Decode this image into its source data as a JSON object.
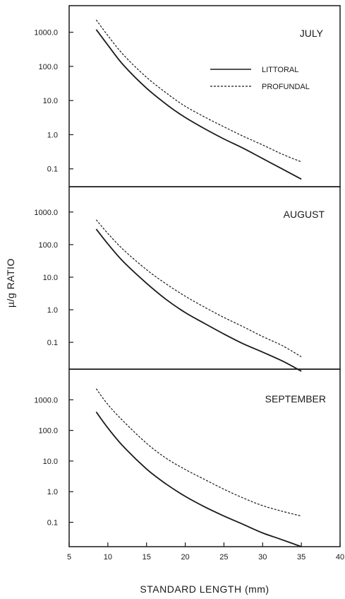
{
  "chart_data": {
    "type": "line",
    "xlabel": "STANDARD LENGTH (mm)",
    "ylabel": "µ/g RATIO",
    "x_scale": "linear",
    "y_scale": "log",
    "xlim": [
      5,
      40
    ],
    "x_ticks": [
      "5",
      "10",
      "15",
      "20",
      "25",
      "30",
      "35",
      "40"
    ],
    "legend": {
      "placement": "top-right of first panel",
      "entries": [
        {
          "label": "LITTORAL",
          "style": "solid"
        },
        {
          "label": "PROFUNDAL",
          "style": "dashed"
        }
      ]
    },
    "panels": [
      {
        "title": "JULY",
        "ylim": [
          0.03,
          6000
        ],
        "y_ticks": [
          "1000.0",
          "100.0",
          "10.0",
          "1.0",
          "0.1"
        ],
        "series": [
          {
            "name": "LITTORAL",
            "style": "solid",
            "x": [
              8.5,
              10,
              12,
              15,
              18,
              20,
              22.5,
              25,
              27.5,
              30,
              32.5,
              35
            ],
            "y": [
              1200,
              420,
              110,
              23,
              6.5,
              3.2,
              1.5,
              0.75,
              0.4,
              0.2,
              0.1,
              0.05
            ]
          },
          {
            "name": "PROFUNDAL",
            "style": "dashed",
            "x": [
              8.5,
              10,
              12,
              15,
              18,
              20,
              22.5,
              25,
              27.5,
              30,
              32.5,
              35
            ],
            "y": [
              2300,
              800,
              220,
              48,
              14,
              6.8,
              3.3,
              1.7,
              0.9,
              0.5,
              0.27,
              0.16
            ]
          }
        ]
      },
      {
        "title": "AUGUST",
        "ylim": [
          0.015,
          6000
        ],
        "y_ticks": [
          "1000.0",
          "100.0",
          "10.0",
          "1.0",
          "0.1"
        ],
        "series": [
          {
            "name": "LITTORAL",
            "style": "solid",
            "x": [
              8.5,
              10,
              12,
              15,
              17.5,
              20,
              22.5,
              25,
              27.5,
              30,
              32.5,
              35
            ],
            "y": [
              300,
              105,
              30,
              6.5,
              2.1,
              0.82,
              0.38,
              0.18,
              0.09,
              0.05,
              0.027,
              0.013
            ]
          },
          {
            "name": "PROFUNDAL",
            "style": "dashed",
            "x": [
              8.5,
              10,
              12,
              15,
              17.5,
              20,
              22.5,
              25,
              27.5,
              30,
              32.5,
              35
            ],
            "y": [
              580,
              220,
              70,
              17,
              6.3,
              2.6,
              1.2,
              0.58,
              0.3,
              0.15,
              0.08,
              0.036
            ]
          }
        ]
      },
      {
        "title": "SEPTEMBER",
        "ylim": [
          0.016,
          10000
        ],
        "y_ticks": [
          "1000.0",
          "100.0",
          "10.0",
          "1.0",
          "0.1"
        ],
        "series": [
          {
            "name": "LITTORAL",
            "style": "solid",
            "x": [
              8.5,
              10,
              12,
              15,
              17.5,
              20,
              22.5,
              25,
              27.5,
              30,
              32.5,
              35
            ],
            "y": [
              400,
              120,
              30,
              5.5,
              1.8,
              0.7,
              0.32,
              0.16,
              0.085,
              0.045,
              0.027,
              0.016
            ]
          },
          {
            "name": "PROFUNDAL",
            "style": "dashed",
            "x": [
              8.5,
              10,
              12,
              15,
              17.5,
              20,
              22.5,
              25,
              27.5,
              30,
              32.5,
              35
            ],
            "y": [
              2300,
              700,
              200,
              38,
              12.5,
              5.3,
              2.5,
              1.2,
              0.62,
              0.35,
              0.23,
              0.16
            ]
          }
        ]
      }
    ]
  }
}
